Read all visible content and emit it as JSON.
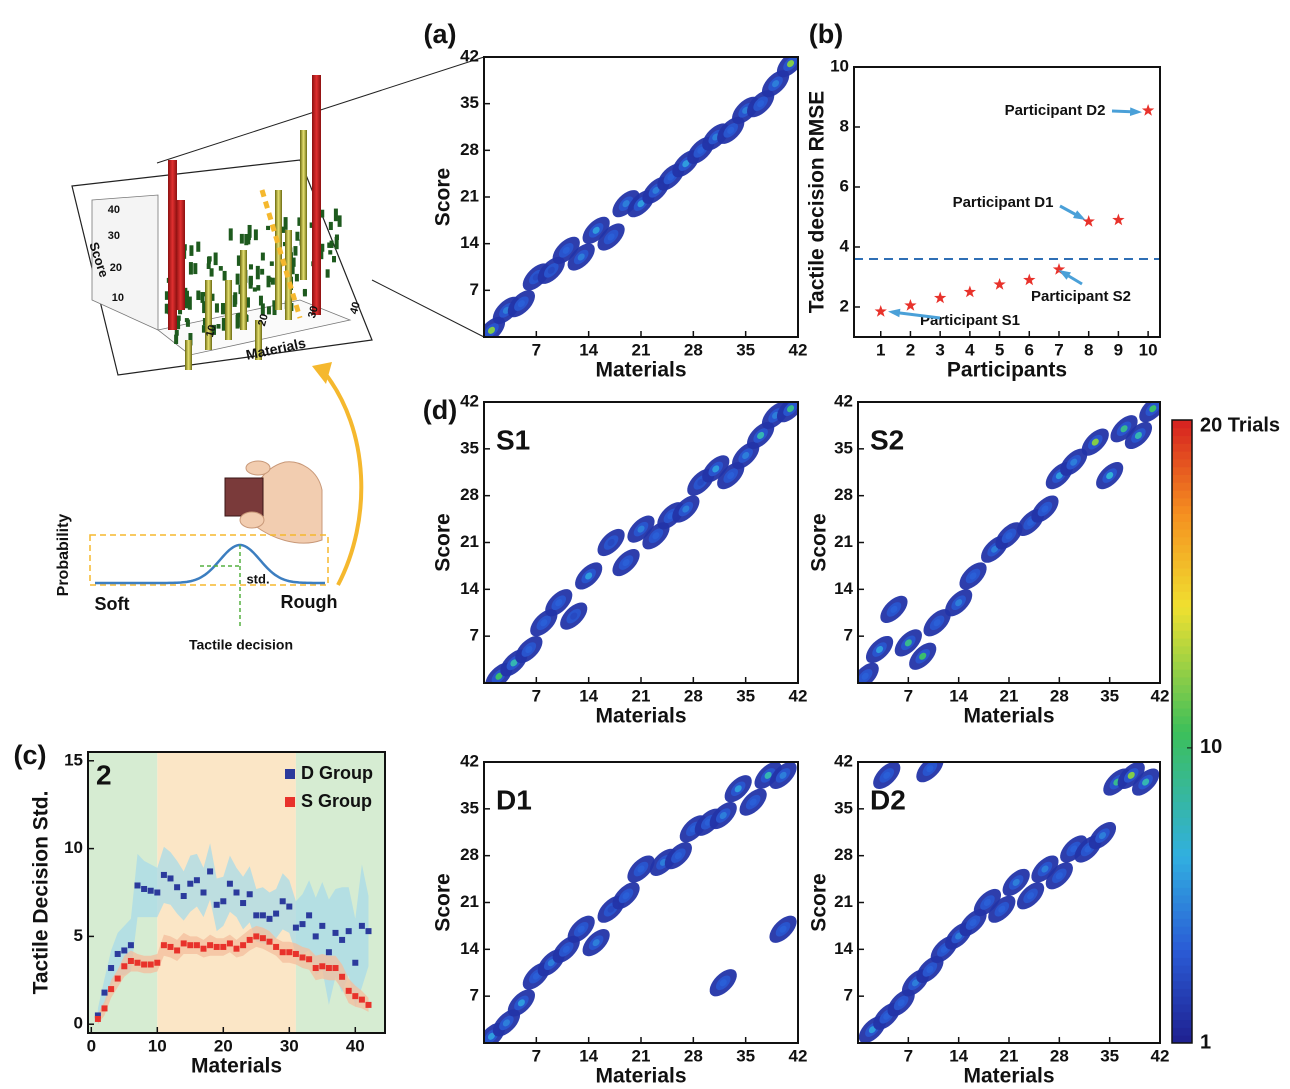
{
  "figure": {
    "colorbar": {
      "lim": [
        1,
        20
      ],
      "ticks": [
        {
          "value": 20,
          "label": "20 Trials"
        },
        10,
        1
      ]
    },
    "illustration": {
      "axis_y_label": "Score",
      "axis_x_label": "Materials",
      "y_tick_labels": [
        "10",
        "20",
        "30",
        "40"
      ],
      "x_tick_labels": [
        "10",
        "20",
        "30",
        "40"
      ],
      "probability": "Probability",
      "soft": "Soft",
      "rough": "Rough",
      "std": "std.",
      "decision": "Tactile decision"
    }
  },
  "chart_data": [
    {
      "type": "heatmap",
      "panel_label": "(a)",
      "x_label": "Materials",
      "y_label": "Score",
      "xlim": [
        0,
        42
      ],
      "ylim": [
        0,
        42
      ],
      "xticks": [
        7,
        14,
        21,
        28,
        35,
        42
      ],
      "yticks": [
        7,
        14,
        21,
        28,
        35,
        42
      ],
      "x": [
        1,
        3,
        5,
        7,
        9,
        11,
        13,
        15,
        17,
        19,
        21,
        23,
        25,
        27,
        29,
        31,
        33,
        35,
        37,
        39,
        41
      ],
      "y": [
        1,
        4,
        5,
        9,
        10,
        13,
        12,
        16,
        15,
        20,
        20,
        22,
        24,
        26,
        28,
        30,
        31,
        34,
        35,
        38,
        41
      ],
      "values": [
        12,
        5,
        4,
        3,
        3,
        4,
        5,
        6,
        4,
        5,
        6,
        5,
        4,
        6,
        4,
        5,
        4,
        5,
        4,
        5,
        12
      ]
    },
    {
      "type": "scatter",
      "panel_label": "(b)",
      "x_label": "Participants",
      "y_label": "Tactile decision RMSE",
      "xlim": [
        0.1,
        10.4
      ],
      "ylim": [
        1,
        10
      ],
      "xticks": [
        1,
        2,
        3,
        4,
        5,
        6,
        7,
        8,
        9,
        10
      ],
      "yticks": [
        2,
        4,
        6,
        8,
        10
      ],
      "x": [
        1,
        2,
        3,
        4,
        5,
        6,
        7,
        8,
        9,
        10
      ],
      "values": [
        1.85,
        2.05,
        2.3,
        2.5,
        2.75,
        2.9,
        3.25,
        4.85,
        4.9,
        8.55
      ],
      "color": "#e8322b",
      "reference_line": 3.6,
      "annotations": [
        "Participant S1",
        "Participant S2",
        "Participant D1",
        "Participant D2"
      ]
    },
    {
      "type": "line",
      "panel_label": "(c)",
      "label": "2",
      "x_label": "Materials",
      "y_label": "Tactile Decision Std.",
      "xlim": [
        -0.5,
        44.5
      ],
      "ylim": [
        -0.5,
        15.5
      ],
      "xticks": [
        0,
        10,
        20,
        30,
        40
      ],
      "yticks": [
        0,
        5,
        10,
        15
      ],
      "shaded_regions": [
        {
          "from": -0.5,
          "to": 10,
          "color": "#d6ecd2"
        },
        {
          "from": 10,
          "to": 31,
          "color": "#fbe6c6"
        },
        {
          "from": 31,
          "to": 44.5,
          "color": "#d6ecd2"
        }
      ],
      "x": [
        1,
        2,
        3,
        4,
        5,
        6,
        7,
        8,
        9,
        10,
        11,
        12,
        13,
        14,
        15,
        16,
        17,
        18,
        19,
        20,
        21,
        22,
        23,
        24,
        25,
        26,
        27,
        28,
        29,
        30,
        31,
        32,
        33,
        34,
        35,
        36,
        37,
        38,
        39,
        40,
        41,
        42
      ],
      "series": [
        {
          "name": "D Group",
          "color": "#2b3a9c",
          "band_color": "#a8dbe8",
          "values": [
            0.5,
            1.8,
            3.2,
            4,
            4.2,
            4.5,
            7.9,
            7.7,
            7.6,
            7.5,
            8.5,
            8.3,
            7.8,
            7.3,
            8,
            8.2,
            7.5,
            8.7,
            6.8,
            7,
            8,
            7.5,
            6.9,
            7.4,
            6.2,
            6.2,
            6,
            6.3,
            7,
            6.7,
            5.5,
            5.7,
            6.2,
            5,
            5.6,
            4.1,
            5.2,
            4.8,
            5.3,
            3.5,
            5.6,
            5.3
          ],
          "errors": [
            0.4,
            0.8,
            1,
            1.2,
            1.4,
            1.5,
            1.8,
            1.6,
            1.5,
            1.4,
            1.6,
            1.5,
            1.5,
            1.4,
            1.6,
            1.5,
            1.4,
            1.6,
            1.5,
            1.4,
            1.6,
            1.4,
            1.5,
            1.6,
            1.5,
            1.6,
            1.5,
            1.4,
            1.6,
            1.5,
            1.5,
            1.7,
            2,
            2.2,
            2.5,
            3,
            2.5,
            3,
            2.5,
            2.5,
            3.5,
            2
          ]
        },
        {
          "name": "S Group",
          "color": "#e8322b",
          "band_color": "#f4bd9c",
          "values": [
            0.3,
            0.9,
            2,
            2.6,
            3.3,
            3.6,
            3.5,
            3.4,
            3.4,
            3.5,
            4.5,
            4.4,
            4.2,
            4.6,
            4.5,
            4.5,
            4.3,
            4.5,
            4.4,
            4.4,
            4.6,
            4.3,
            4.5,
            4.8,
            5,
            4.9,
            4.7,
            4.4,
            4.1,
            4.1,
            4,
            3.8,
            3.7,
            3.2,
            3.3,
            3.2,
            3.2,
            2.7,
            1.9,
            1.6,
            1.4,
            1.1
          ],
          "errors": [
            0.3,
            0.4,
            0.5,
            0.5,
            0.6,
            0.6,
            0.5,
            0.5,
            0.5,
            0.5,
            0.6,
            0.6,
            0.6,
            0.6,
            0.5,
            0.5,
            0.5,
            0.6,
            0.5,
            0.5,
            0.5,
            0.5,
            0.6,
            0.6,
            0.6,
            0.6,
            0.6,
            0.5,
            0.6,
            0.6,
            0.6,
            0.6,
            0.6,
            0.7,
            0.7,
            0.7,
            0.7,
            0.7,
            0.7,
            0.6,
            0.5,
            0.4
          ]
        }
      ]
    },
    {
      "type": "heatmap",
      "panel_label": "(d)",
      "label": "S1",
      "x_label": "Materials",
      "y_label": "Score",
      "xlim": [
        0,
        42
      ],
      "ylim": [
        0,
        42
      ],
      "xticks": [
        7,
        14,
        21,
        28,
        35,
        42
      ],
      "yticks": [
        7,
        14,
        21,
        28,
        35,
        42
      ],
      "x": [
        2,
        4,
        6,
        8,
        10,
        12,
        14,
        17,
        19,
        21,
        23,
        25,
        27,
        29,
        31,
        33,
        35,
        37,
        39,
        41
      ],
      "y": [
        1,
        3,
        5,
        9,
        12,
        10,
        16,
        21,
        18,
        23,
        22,
        25,
        26,
        30,
        32,
        31,
        34,
        37,
        40,
        41
      ],
      "values": [
        10,
        8,
        4,
        4,
        4,
        3,
        6,
        3,
        4,
        5,
        4,
        4,
        5,
        3,
        6,
        4,
        5,
        8,
        5,
        9
      ]
    },
    {
      "type": "heatmap",
      "label": "S2",
      "x_label": "Materials",
      "y_label": "Score",
      "xlim": [
        0,
        42
      ],
      "ylim": [
        0,
        42
      ],
      "xticks": [
        7,
        14,
        21,
        28,
        35,
        42
      ],
      "yticks": [
        7,
        14,
        21,
        28,
        35,
        42
      ],
      "x": [
        1,
        3,
        5,
        7,
        9,
        11,
        14,
        16,
        19,
        21,
        24,
        26,
        28,
        30,
        33,
        35,
        37,
        39,
        41
      ],
      "y": [
        1,
        5,
        11,
        6,
        4,
        9,
        12,
        16,
        20,
        22,
        24,
        26,
        31,
        33,
        36,
        31,
        38,
        37,
        41
      ],
      "values": [
        4,
        6,
        4,
        9,
        10,
        4,
        5,
        4,
        5,
        4,
        4,
        4,
        6,
        5,
        12,
        7,
        9,
        8,
        10
      ]
    },
    {
      "type": "heatmap",
      "label": "D1",
      "x_label": "Materials",
      "y_label": "Score",
      "xlim": [
        0,
        42
      ],
      "ylim": [
        0,
        42
      ],
      "xticks": [
        7,
        14,
        21,
        28,
        35,
        42
      ],
      "yticks": [
        7,
        14,
        21,
        28,
        35,
        42
      ],
      "x": [
        1,
        3,
        5,
        7,
        9,
        11,
        13,
        15,
        17,
        19,
        21,
        24,
        26,
        28,
        30,
        32,
        34,
        36,
        38,
        40,
        32,
        40
      ],
      "y": [
        1,
        3,
        6,
        10,
        12,
        14,
        17,
        15,
        20,
        22,
        26,
        27,
        28,
        32,
        33,
        34,
        38,
        36,
        40,
        40,
        9,
        17
      ],
      "values": [
        6,
        5,
        6,
        4,
        5,
        4,
        4,
        5,
        3,
        4,
        4,
        5,
        4,
        4,
        4,
        5,
        6,
        4,
        8,
        5,
        4,
        4
      ]
    },
    {
      "type": "heatmap",
      "label": "D2",
      "x_label": "Materials",
      "y_label": "Score",
      "xlim": [
        0,
        42
      ],
      "ylim": [
        0,
        42
      ],
      "xticks": [
        7,
        14,
        21,
        28,
        35,
        42
      ],
      "yticks": [
        7,
        14,
        21,
        28,
        35,
        42
      ],
      "x": [
        2,
        4,
        6,
        8,
        10,
        12,
        14,
        16,
        18,
        20,
        22,
        24,
        26,
        28,
        30,
        32,
        34,
        36,
        38,
        40,
        4,
        10
      ],
      "y": [
        2,
        4,
        6,
        9,
        11,
        14,
        16,
        18,
        21,
        20,
        24,
        22,
        26,
        25,
        29,
        29,
        31,
        39,
        40,
        39,
        40,
        41
      ],
      "values": [
        6,
        4,
        4,
        5,
        4,
        4,
        5,
        4,
        4,
        4,
        5,
        4,
        5,
        4,
        4,
        4,
        5,
        9,
        12,
        8,
        4,
        4
      ]
    }
  ]
}
